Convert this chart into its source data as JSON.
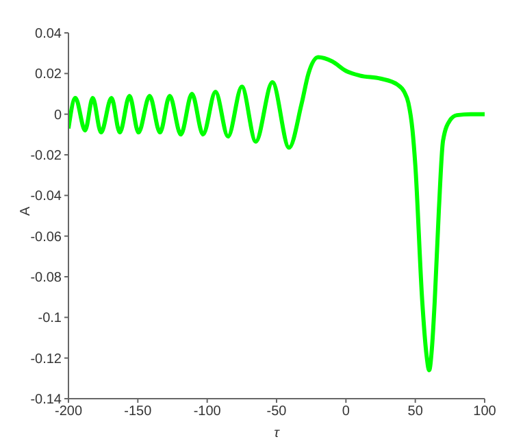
{
  "chart_data": {
    "type": "line",
    "xlabel": "τ",
    "ylabel": "A",
    "series": [
      {
        "color": "#00ff00",
        "x": [
          -200,
          -195,
          -188,
          -182.5,
          -176.5,
          -169,
          -163,
          -156,
          -149.5,
          -141.5,
          -134,
          -127,
          -119,
          -111,
          -103,
          -94,
          -85,
          -75,
          -65,
          -53,
          -41,
          -32,
          -27,
          -20,
          -10,
          0,
          10,
          25,
          37,
          42,
          45,
          48,
          50,
          55,
          58,
          60,
          62,
          64,
          67,
          70,
          75,
          80,
          90,
          100
        ],
        "values": [
          -0.007,
          0.008,
          -0.008,
          0.008,
          -0.009,
          0.008,
          -0.009,
          0.009,
          -0.009,
          0.009,
          -0.009,
          0.009,
          -0.01,
          0.01,
          -0.01,
          0.011,
          -0.011,
          0.0135,
          -0.0135,
          0.0157,
          -0.0165,
          0.005,
          0.02,
          0.028,
          0.026,
          0.0213,
          0.019,
          0.0175,
          0.0146,
          0.011,
          0.0056,
          -0.008,
          -0.025,
          -0.092,
          -0.118,
          -0.126,
          -0.115,
          -0.092,
          -0.047,
          -0.013,
          -0.003,
          -0.0005,
          0,
          0
        ]
      }
    ],
    "xlim": [
      -200,
      100
    ],
    "xticks": [
      -200,
      -150,
      -100,
      -50,
      0,
      50,
      100
    ],
    "ylim": [
      -0.14,
      0.04
    ],
    "yticks": [
      -0.14,
      -0.12,
      -0.1,
      -0.08,
      -0.06,
      -0.04,
      -0.02,
      0,
      0.02,
      0.04
    ],
    "grid": false,
    "legend": false,
    "marker": "none",
    "line_style": "solid"
  }
}
